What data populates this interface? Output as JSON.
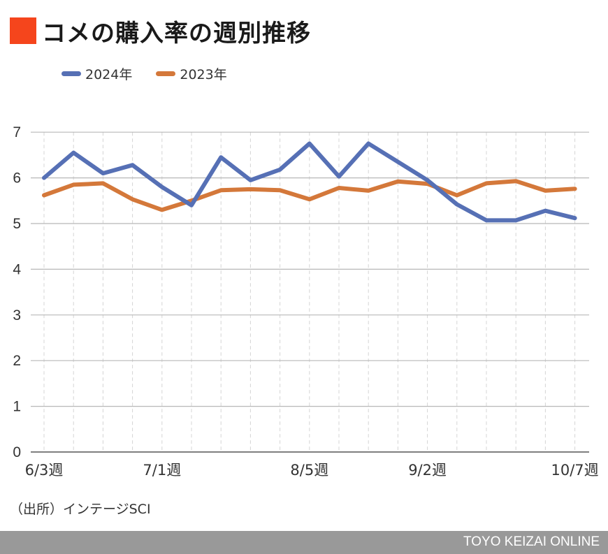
{
  "title": "コメの購入率の週別推移",
  "source": "（出所）インテージSCI",
  "footer": "TOYO KEIZAI ONLINE",
  "colors": {
    "title_marker": "#f5451c",
    "series_2024": "#5670b5",
    "series_2023": "#d4783a",
    "footer_bg": "#999999"
  },
  "chart_data": {
    "type": "line",
    "title": "コメの購入率の週別推移",
    "xlabel": "",
    "ylabel": "",
    "ylim": [
      0,
      7
    ],
    "yticks": [
      "0",
      "1",
      "2",
      "3",
      "4",
      "5",
      "6",
      "7"
    ],
    "x_tick_labels": [
      {
        "index": 0,
        "label": "6/3週"
      },
      {
        "index": 4,
        "label": "7/1週"
      },
      {
        "index": 9,
        "label": "8/5週"
      },
      {
        "index": 13,
        "label": "9/2週"
      },
      {
        "index": 18,
        "label": "10/7週"
      }
    ],
    "legend_position": "top-left",
    "grid": true,
    "series": [
      {
        "name": "2024年",
        "color": "#5670b5",
        "values": [
          6.0,
          6.55,
          6.1,
          6.28,
          5.8,
          5.4,
          6.45,
          5.95,
          6.18,
          6.75,
          6.03,
          6.75,
          6.35,
          5.95,
          5.42,
          5.07,
          5.07,
          5.28,
          5.12
        ]
      },
      {
        "name": "2023年",
        "color": "#d4783a",
        "values": [
          5.62,
          5.85,
          5.88,
          5.53,
          5.3,
          5.5,
          5.73,
          5.75,
          5.73,
          5.53,
          5.78,
          5.72,
          5.92,
          5.87,
          5.62,
          5.88,
          5.93,
          5.72,
          5.76
        ]
      }
    ]
  }
}
